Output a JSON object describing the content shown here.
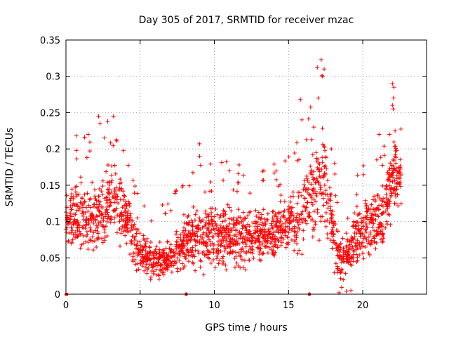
{
  "chart_data": {
    "type": "scatter",
    "title": "Day 305 of 2017, SRMTID for receiver mzac",
    "xlabel": "GPS time / hours",
    "ylabel": "SRMTID / TECUs",
    "xlim": [
      0,
      24.3
    ],
    "ylim": [
      0,
      0.35
    ],
    "xticks": [
      0,
      5,
      10,
      15,
      20
    ],
    "xtick_labels": [
      "0",
      "5",
      "10",
      "15",
      "20"
    ],
    "yticks": [
      0,
      0.05,
      0.1,
      0.15,
      0.2,
      0.25,
      0.3,
      0.35
    ],
    "ytick_labels": [
      "0",
      "0.05",
      "0.1",
      "0.15",
      "0.2",
      "0.25",
      "0.3",
      "0.35"
    ],
    "grid": true,
    "marker": "+",
    "color": "#ff0000",
    "zero_markers_x": [
      0.05,
      8.1,
      16.4
    ],
    "envelope": [
      {
        "x": 0.0,
        "y_low": 0.05,
        "y_high": 0.15
      },
      {
        "x": 1.0,
        "y_low": 0.04,
        "y_high": 0.18
      },
      {
        "x": 2.0,
        "y_low": 0.04,
        "y_high": 0.16
      },
      {
        "x": 3.0,
        "y_low": 0.06,
        "y_high": 0.2
      },
      {
        "x": 3.8,
        "y_low": 0.05,
        "y_high": 0.18
      },
      {
        "x": 5.0,
        "y_low": 0.02,
        "y_high": 0.1
      },
      {
        "x": 6.0,
        "y_low": 0.01,
        "y_high": 0.08
      },
      {
        "x": 7.0,
        "y_low": 0.01,
        "y_high": 0.08
      },
      {
        "x": 8.0,
        "y_low": 0.02,
        "y_high": 0.12
      },
      {
        "x": 9.0,
        "y_low": 0.02,
        "y_high": 0.14
      },
      {
        "x": 10.0,
        "y_low": 0.02,
        "y_high": 0.14
      },
      {
        "x": 11.0,
        "y_low": 0.02,
        "y_high": 0.14
      },
      {
        "x": 12.0,
        "y_low": 0.02,
        "y_high": 0.13
      },
      {
        "x": 13.0,
        "y_low": 0.03,
        "y_high": 0.13
      },
      {
        "x": 14.0,
        "y_low": 0.03,
        "y_high": 0.14
      },
      {
        "x": 15.0,
        "y_low": 0.04,
        "y_high": 0.16
      },
      {
        "x": 16.0,
        "y_low": 0.04,
        "y_high": 0.17
      },
      {
        "x": 16.8,
        "y_low": 0.05,
        "y_high": 0.26
      },
      {
        "x": 17.3,
        "y_low": 0.05,
        "y_high": 0.28
      },
      {
        "x": 18.0,
        "y_low": 0.02,
        "y_high": 0.14
      },
      {
        "x": 18.6,
        "y_low": 0.0,
        "y_high": 0.08
      },
      {
        "x": 19.5,
        "y_low": 0.02,
        "y_high": 0.13
      },
      {
        "x": 20.5,
        "y_low": 0.03,
        "y_high": 0.16
      },
      {
        "x": 21.5,
        "y_low": 0.04,
        "y_high": 0.17
      },
      {
        "x": 22.1,
        "y_low": 0.1,
        "y_high": 0.25
      },
      {
        "x": 22.6,
        "y_low": 0.12,
        "y_high": 0.2
      }
    ],
    "notable_points": [
      {
        "x": 17.2,
        "y": 0.323
      },
      {
        "x": 17.4,
        "y": 0.31
      },
      {
        "x": 17.3,
        "y": 0.3
      },
      {
        "x": 22.0,
        "y": 0.29
      },
      {
        "x": 22.1,
        "y": 0.285
      },
      {
        "x": 17.0,
        "y": 0.27
      },
      {
        "x": 15.8,
        "y": 0.268
      },
      {
        "x": 22.0,
        "y": 0.26
      },
      {
        "x": 15.9,
        "y": 0.24
      },
      {
        "x": 2.2,
        "y": 0.245
      },
      {
        "x": 3.2,
        "y": 0.245
      },
      {
        "x": 2.3,
        "y": 0.235
      },
      {
        "x": 16.7,
        "y": 0.23
      },
      {
        "x": 1.5,
        "y": 0.22
      },
      {
        "x": 0.7,
        "y": 0.218
      },
      {
        "x": 21.1,
        "y": 0.22
      },
      {
        "x": 21.8,
        "y": 0.22
      },
      {
        "x": 9.0,
        "y": 0.207
      },
      {
        "x": 0.0,
        "y": 0.0
      },
      {
        "x": 8.1,
        "y": 0.0
      },
      {
        "x": 16.4,
        "y": 0.0
      },
      {
        "x": 18.4,
        "y": 0.002
      },
      {
        "x": 18.9,
        "y": 0.004
      },
      {
        "x": 19.2,
        "y": 0.005
      }
    ],
    "points_per_hour": 90
  }
}
